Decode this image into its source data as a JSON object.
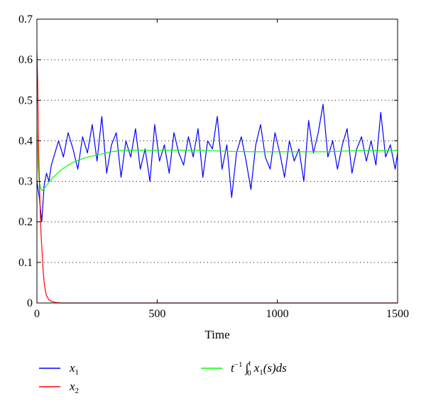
{
  "chart_data": {
    "type": "line",
    "title": "",
    "xlabel": "Time",
    "ylabel": "",
    "xlim": [
      0,
      1500
    ],
    "ylim": [
      0,
      0.7
    ],
    "xticks": [
      0,
      500,
      1000,
      1500
    ],
    "xtick_labels": [
      "0",
      "500",
      "1000",
      "1500"
    ],
    "yticks": [
      0,
      0.1,
      0.2,
      0.3,
      0.4,
      0.5,
      0.6,
      0.7
    ],
    "ytick_labels": [
      "0",
      "0.1",
      "0.2",
      "0.3",
      "0.4",
      "0.5",
      "0.6",
      "0.7"
    ],
    "grid": "horizontal dotted",
    "legend_position": "bottom",
    "legend": {
      "x1_label": "x",
      "x1_sub": "1",
      "x2_label": "x",
      "x2_sub": "2",
      "avg_label_prefix": "t",
      "avg_label_exp": "−1",
      "avg_label_integral": "∫",
      "avg_label_upper": "t",
      "avg_label_lower": "0",
      "avg_label_body": "x",
      "avg_label_body_sub": "1",
      "avg_label_tail": "(s)ds"
    },
    "series": [
      {
        "name": "x1",
        "color": "#0000ff",
        "x": [
          0,
          10,
          20,
          30,
          40,
          50,
          60,
          75,
          90,
          110,
          130,
          150,
          170,
          190,
          210,
          230,
          250,
          270,
          290,
          310,
          330,
          350,
          370,
          390,
          410,
          430,
          450,
          470,
          490,
          510,
          530,
          550,
          570,
          590,
          610,
          630,
          650,
          670,
          690,
          710,
          730,
          750,
          770,
          790,
          810,
          830,
          850,
          870,
          890,
          910,
          930,
          950,
          970,
          990,
          1010,
          1030,
          1050,
          1070,
          1090,
          1110,
          1130,
          1150,
          1170,
          1190,
          1210,
          1230,
          1250,
          1270,
          1290,
          1310,
          1330,
          1350,
          1370,
          1390,
          1410,
          1430,
          1450,
          1470,
          1490,
          1500
        ],
        "y": [
          0.3,
          0.26,
          0.2,
          0.29,
          0.32,
          0.3,
          0.34,
          0.37,
          0.4,
          0.36,
          0.42,
          0.38,
          0.33,
          0.41,
          0.37,
          0.44,
          0.35,
          0.46,
          0.32,
          0.39,
          0.42,
          0.31,
          0.4,
          0.36,
          0.43,
          0.33,
          0.38,
          0.3,
          0.44,
          0.35,
          0.39,
          0.32,
          0.42,
          0.37,
          0.34,
          0.41,
          0.36,
          0.43,
          0.31,
          0.4,
          0.38,
          0.46,
          0.33,
          0.39,
          0.26,
          0.37,
          0.41,
          0.35,
          0.28,
          0.39,
          0.44,
          0.36,
          0.33,
          0.42,
          0.37,
          0.31,
          0.4,
          0.35,
          0.38,
          0.3,
          0.45,
          0.37,
          0.42,
          0.49,
          0.36,
          0.4,
          0.33,
          0.39,
          0.43,
          0.32,
          0.38,
          0.41,
          0.35,
          0.4,
          0.34,
          0.47,
          0.36,
          0.39,
          0.33,
          0.37
        ]
      },
      {
        "name": "x2",
        "color": "#ff0000",
        "x": [
          0,
          3,
          6,
          9,
          12,
          15,
          18,
          22,
          26,
          30,
          35,
          40,
          50,
          60,
          80,
          100,
          150,
          200,
          300,
          500,
          800,
          1000,
          1200,
          1500
        ],
        "y": [
          0.62,
          0.55,
          0.42,
          0.33,
          0.26,
          0.2,
          0.16,
          0.12,
          0.08,
          0.05,
          0.03,
          0.018,
          0.008,
          0.004,
          0.001,
          0.0,
          0.0,
          0.0,
          0.0,
          0.0,
          0.0,
          0.0,
          0.0,
          0.0
        ]
      },
      {
        "name": "t^-1 ∫0^t x1(s)ds",
        "color": "#00ff00",
        "x": [
          0,
          5,
          10,
          15,
          20,
          30,
          40,
          60,
          80,
          100,
          130,
          160,
          200,
          250,
          300,
          350,
          400,
          500,
          600,
          700,
          800,
          900,
          1000,
          1100,
          1200,
          1300,
          1400,
          1500
        ],
        "y": [
          0.43,
          0.34,
          0.3,
          0.285,
          0.277,
          0.282,
          0.29,
          0.305,
          0.317,
          0.328,
          0.34,
          0.35,
          0.358,
          0.365,
          0.372,
          0.376,
          0.377,
          0.376,
          0.377,
          0.376,
          0.374,
          0.373,
          0.373,
          0.373,
          0.373,
          0.375,
          0.376,
          0.376
        ]
      }
    ]
  }
}
